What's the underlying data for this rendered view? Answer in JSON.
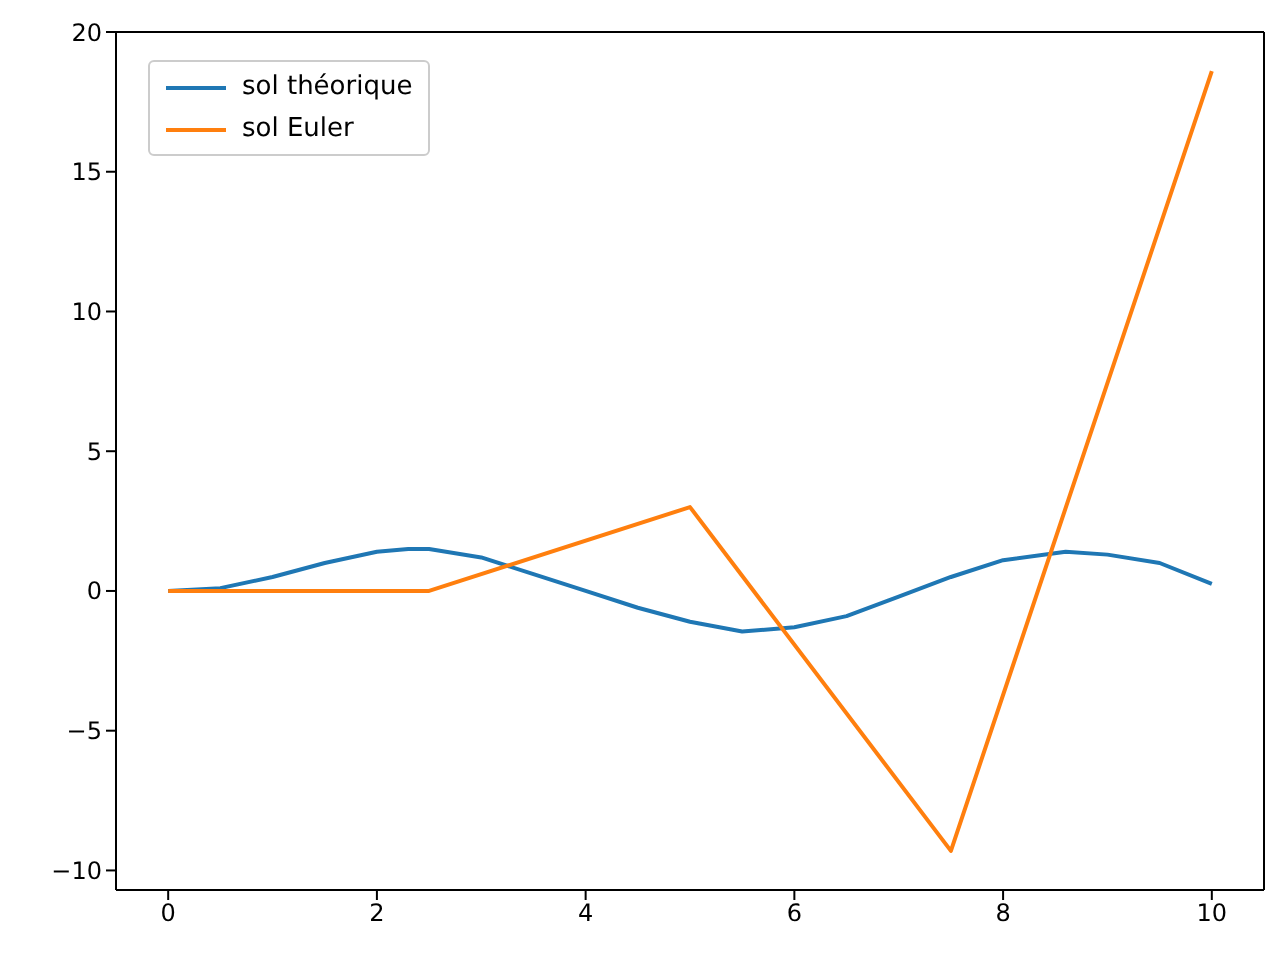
{
  "chart_data": {
    "type": "line",
    "x": [
      0,
      0.5,
      1,
      1.5,
      2,
      2.3,
      2.5,
      3,
      3.5,
      4,
      4.5,
      5,
      5.5,
      6,
      6.5,
      7,
      7.5,
      8,
      8.6,
      9,
      9.5,
      10
    ],
    "series": [
      {
        "name": "sol théorique",
        "color": "#1f77b4",
        "values": [
          0,
          0.1,
          0.5,
          1.0,
          1.4,
          1.5,
          1.5,
          1.2,
          0.6,
          0,
          -0.6,
          -1.1,
          -1.45,
          -1.3,
          -0.9,
          -0.2,
          0.5,
          1.1,
          1.4,
          1.3,
          1.0,
          0.25
        ]
      },
      {
        "name": "sol Euler",
        "color": "#ff7f0e",
        "x": [
          0,
          2.5,
          5,
          7.5,
          10
        ],
        "values": [
          0,
          0,
          3,
          -9.3,
          18.6
        ]
      }
    ],
    "xlim": [
      -0.5,
      10.5
    ],
    "xticks": [
      0,
      2,
      4,
      6,
      8,
      10
    ],
    "ylim": [
      -10.7,
      20
    ],
    "yticks": [
      {
        "value": -10,
        "label": "−10"
      },
      {
        "value": -5,
        "label": "−5"
      },
      0,
      5,
      10,
      15,
      20
    ],
    "legend": "top left",
    "marker": "none",
    "line_style": "solid"
  }
}
